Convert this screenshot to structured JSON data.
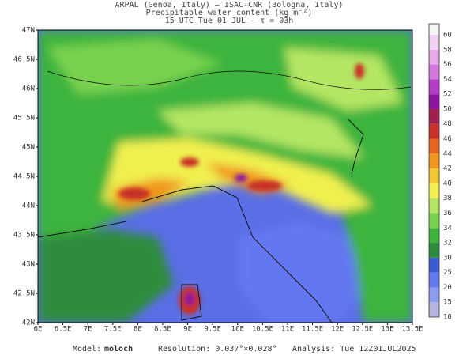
{
  "header": {
    "title": "ARPAL (Genoa, Italy)  –  ISAC-CNR (Bologna, Italy)",
    "subtitle": "Precipitable water content (kg m⁻²)",
    "time": "15 UTC Tue 01 JUL  –  τ = 03h"
  },
  "map": {
    "lat_labels": [
      "42N",
      "42.5N",
      "43N",
      "43.5N",
      "44N",
      "44.5N",
      "45N",
      "45.5N",
      "46N",
      "46.5N",
      "47N"
    ],
    "lon_labels": [
      "6E",
      "6.5E",
      "7E",
      "7.5E",
      "8E",
      "8.5E",
      "9E",
      "9.5E",
      "10E",
      "10.5E",
      "11E",
      "11.5E",
      "12E",
      "12.5E",
      "13E",
      "13.5E"
    ]
  },
  "colorbar": {
    "levels": [
      10,
      15,
      20,
      25,
      30,
      32,
      34,
      36,
      38,
      40,
      42,
      44,
      46,
      48,
      50,
      52,
      54,
      56,
      58,
      60
    ],
    "colors": [
      "#b4b4dc",
      "#8c9cf0",
      "#6478f0",
      "#3c5ad2",
      "#2d8c3c",
      "#3cb43c",
      "#78d250",
      "#b4e664",
      "#f0f050",
      "#f0c832",
      "#f0961e",
      "#e6641e",
      "#c83228",
      "#a01e50",
      "#8c14a0",
      "#b43cc8",
      "#d278dc",
      "#e6aae6",
      "#f0d2f0",
      "#f5f5f5"
    ]
  },
  "footer": {
    "model_label": "Model:",
    "model": "moloch",
    "resolution": "Resolution: 0.037°×0.028°",
    "analysis": "Analysis: Tue 12Z01JUL2025"
  }
}
